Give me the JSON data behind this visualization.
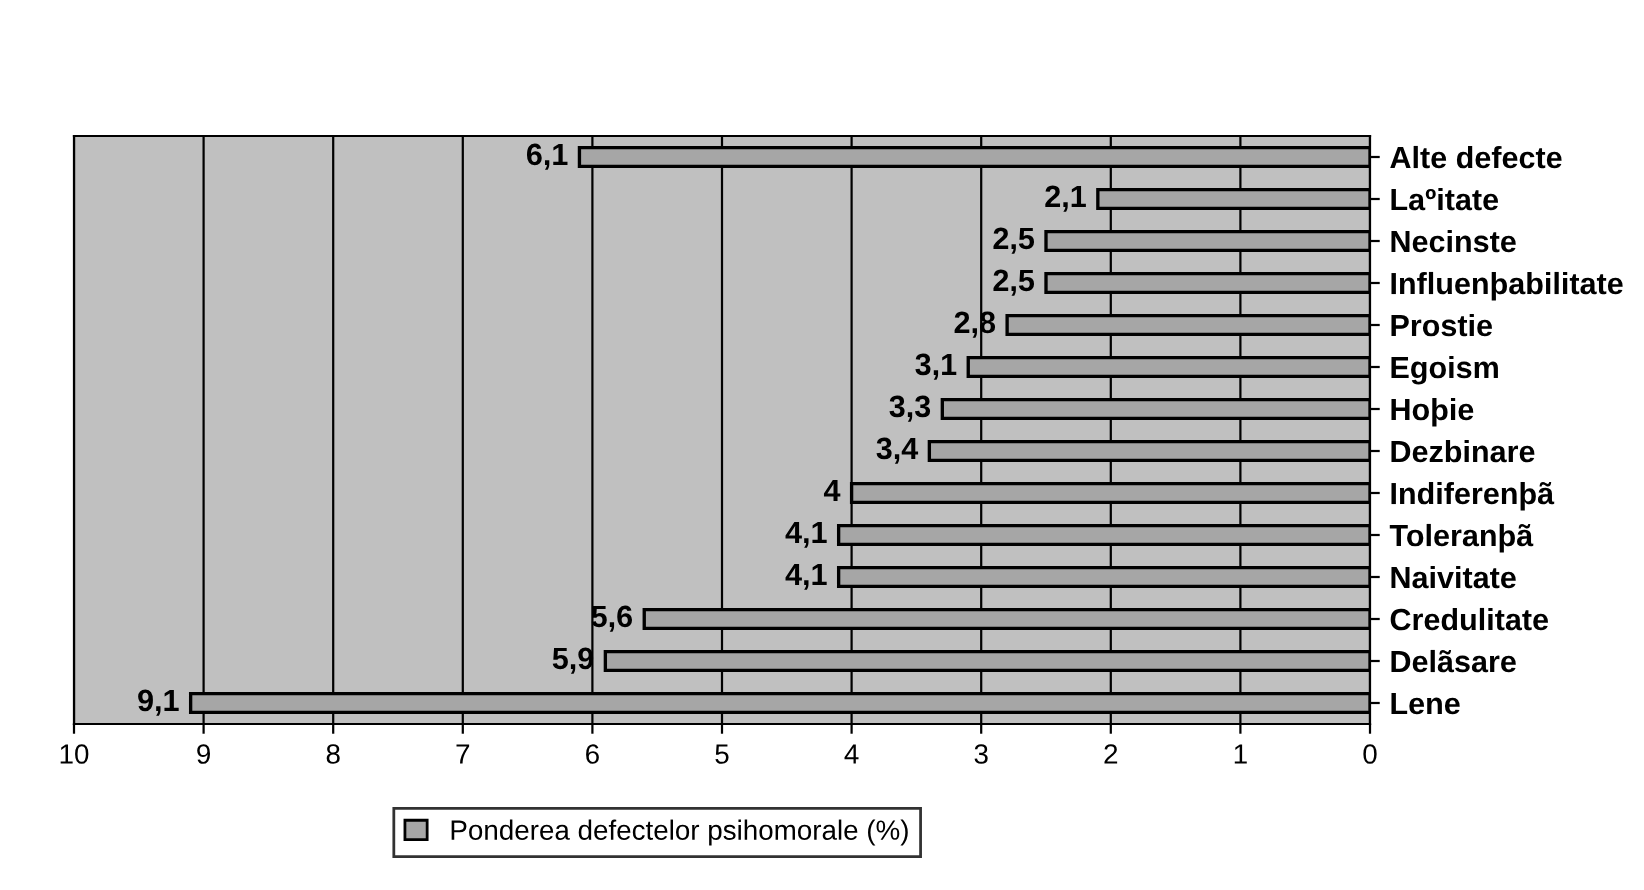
{
  "chart_data": {
    "type": "bar",
    "orientation": "horizontal",
    "categories": [
      "Alte defecte",
      "Laºitate",
      "Necinste",
      "Influenþabilitate",
      "Prostie",
      "Egoism",
      "Hoþie",
      "Dezbinare",
      "Indiferenþã",
      "Toleranþã",
      "Naivitate",
      "Credulitate",
      "Delãsare",
      "Lene"
    ],
    "series": [
      {
        "name": "Ponderea defectelor psihomorale (%)",
        "color": "#a6a6a6",
        "values": [
          6.1,
          2.1,
          2.5,
          2.5,
          2.8,
          3.1,
          3.3,
          3.4,
          4,
          4.1,
          4.1,
          5.6,
          5.9,
          9.1
        ]
      }
    ],
    "value_labels": [
      "6,1",
      "2,1",
      "2,5",
      "2,5",
      "2,8",
      "3,1",
      "3,3",
      "3,4",
      "4",
      "4,1",
      "4,1",
      "5,6",
      "5,9",
      "9,1"
    ],
    "xlim": [
      10,
      0
    ],
    "xticks": [
      10,
      9,
      8,
      7,
      6,
      5,
      4,
      3,
      2,
      1,
      0
    ],
    "grid": "x",
    "legend": "bottom"
  }
}
